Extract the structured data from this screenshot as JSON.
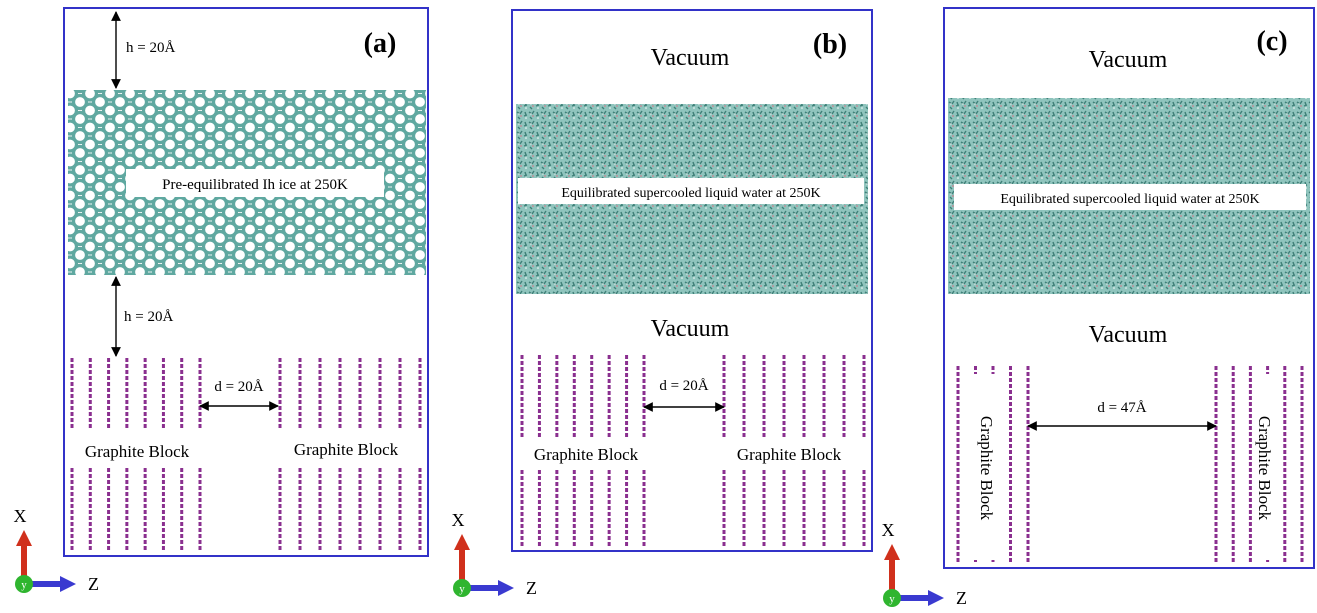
{
  "panels": [
    {
      "id": "a",
      "tag": "(a)",
      "top_label": "h = 20Å",
      "layer_label": "Pre-equilibrated Ih ice at 250K",
      "gap_label": "h = 20Å",
      "d_label": "d = 20Å",
      "block_labels": [
        "Graphite Block",
        "Graphite Block"
      ],
      "vacuum_top": "",
      "vacuum_mid": ""
    },
    {
      "id": "b",
      "tag": "(b)",
      "top_label": "",
      "layer_label": "Equilibrated supercooled liquid water at 250K",
      "gap_label": "",
      "d_label": "d = 20Å",
      "block_labels": [
        "Graphite Block",
        "Graphite Block"
      ],
      "vacuum_top": "Vacuum",
      "vacuum_mid": "Vacuum"
    },
    {
      "id": "c",
      "tag": "(c)",
      "top_label": "",
      "layer_label": "Equilibrated supercooled liquid water at 250K",
      "gap_label": "",
      "d_label": "d = 47Å",
      "block_labels": [
        "Graphite Block",
        "Graphite Block"
      ],
      "vacuum_top": "Vacuum",
      "vacuum_mid": "Vacuum"
    }
  ],
  "axes": {
    "x_label": "X",
    "y_label": "y",
    "z_label": "Z"
  },
  "colors": {
    "frame": "#3232c8",
    "water": "#5fa8a0",
    "graphite": "#8a2f8f",
    "axis_x": "#d0301c",
    "axis_y": "#2fb52f",
    "axis_z": "#3a3ad0"
  }
}
